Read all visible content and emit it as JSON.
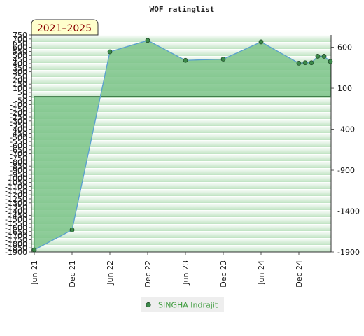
{
  "chart_data": {
    "type": "area",
    "title": "WOF ratinglist",
    "badge": "2021–2025",
    "x_ticks": [
      "Jun 21",
      "Dec 21",
      "Jun 22",
      "Dec 22",
      "Jun 23",
      "Dec 23",
      "Jun 24",
      "Dec 24"
    ],
    "left_axis": {
      "ylim": [
        -1900,
        750
      ],
      "ticks": [
        750,
        700,
        650,
        600,
        550,
        500,
        450,
        400,
        350,
        300,
        250,
        200,
        150,
        100,
        50,
        0,
        -50,
        -100,
        -150,
        -200,
        -250,
        -300,
        -350,
        -400,
        -450,
        -500,
        -550,
        -600,
        -650,
        -700,
        -750,
        -800,
        -850,
        -900,
        -950,
        -1000,
        -1050,
        -1100,
        -1150,
        -1200,
        -1250,
        -1300,
        -1350,
        -1400,
        -1450,
        -1500,
        -1550,
        -1600,
        -1650,
        -1700,
        -1750,
        -1800,
        -1850,
        -1900
      ]
    },
    "right_axis": {
      "ticks": [
        600,
        100,
        -400,
        -900,
        -1400,
        -1900
      ]
    },
    "series": [
      {
        "name": "SINGHA Indrajit",
        "color": "#5aa0d0",
        "fill": "#7cc48a",
        "marker": "#3c8a4a",
        "x": [
          "2021-06",
          "2021-12",
          "2022-06",
          "2022-12",
          "2023-06",
          "2023-12",
          "2024-06",
          "2024-12",
          "2025-01",
          "2025-02",
          "2025-03",
          "2025-04",
          "2025-05"
        ],
        "values": [
          -1875,
          -1630,
          545,
          683,
          440,
          455,
          665,
          405,
          410,
          410,
          490,
          490,
          425
        ]
      }
    ],
    "legend": {
      "position": "bottom"
    },
    "grid": true,
    "baseline": 0
  }
}
